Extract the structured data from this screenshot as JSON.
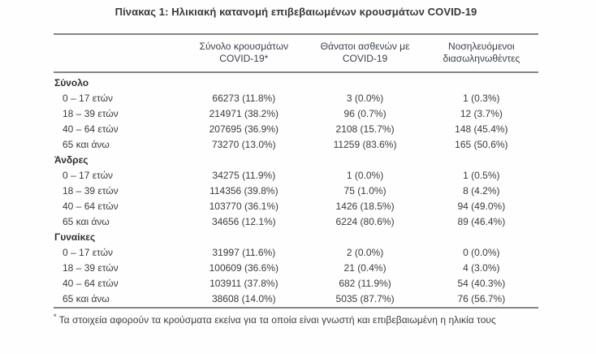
{
  "title": "Πίνακας 1: Ηλικιακή κατανομή επιβεβαιωμένων κρουσμάτων COVID-19",
  "colors": {
    "rule_gray": "#85858a",
    "text_dark": "#3a3b3d",
    "background": "#fefefe"
  },
  "table": {
    "columns": [
      {
        "line1": "",
        "line2": ""
      },
      {
        "line1": "Σύνολο κρουσμάτων",
        "line2": "COVID-19*"
      },
      {
        "line1": "Θάνατοι ασθενών με",
        "line2": "COVID-19"
      },
      {
        "line1": "Νοσηλευόμενοι",
        "line2": "διασωληνωθέντες"
      }
    ],
    "sections": [
      {
        "label": "Σύνολο",
        "rows": [
          {
            "age": "0 – 17 ετών",
            "cases": "66273 (11.8%)",
            "deaths": "3 (0.0%)",
            "intubated": "1 (0.3%)"
          },
          {
            "age": "18 – 39 ετών",
            "cases": "214971 (38.2%)",
            "deaths": "96 (0.7%)",
            "intubated": "12 (3.7%)"
          },
          {
            "age": "40 – 64 ετών",
            "cases": "207695 (36.9%)",
            "deaths": "2108 (15.7%)",
            "intubated": "148 (45.4%)"
          },
          {
            "age": "65 και άνω",
            "cases": "73270 (13.0%)",
            "deaths": "11259 (83.6%)",
            "intubated": "165 (50.6%)"
          }
        ]
      },
      {
        "label": "Άνδρες",
        "rows": [
          {
            "age": "0 – 17 ετών",
            "cases": "34275 (11.9%)",
            "deaths": "1 (0.0%)",
            "intubated": "1 (0.5%)"
          },
          {
            "age": "18 – 39 ετών",
            "cases": "114356 (39.8%)",
            "deaths": "75 (1.0%)",
            "intubated": "8 (4.2%)"
          },
          {
            "age": "40 – 64 ετών",
            "cases": "103770 (36.1%)",
            "deaths": "1426 (18.5%)",
            "intubated": "94 (49.0%)"
          },
          {
            "age": "65 και άνω",
            "cases": "34656 (12.1%)",
            "deaths": "6224 (80.6%)",
            "intubated": "89 (46.4%)"
          }
        ]
      },
      {
        "label": "Γυναίκες",
        "rows": [
          {
            "age": "0 – 17 ετών",
            "cases": "31997 (11.6%)",
            "deaths": "2 (0.0%)",
            "intubated": "0 (0.0%)"
          },
          {
            "age": "18 – 39 ετών",
            "cases": "100609 (36.6%)",
            "deaths": "21 (0.4%)",
            "intubated": "4 (3.0%)"
          },
          {
            "age": "40 – 64 ετών",
            "cases": "103911 (37.8%)",
            "deaths": "682 (11.9%)",
            "intubated": "54 (40.3%)"
          },
          {
            "age": "65 και άνω",
            "cases": "38608 (14.0%)",
            "deaths": "5035 (87.7%)",
            "intubated": "76 (56.7%)"
          }
        ]
      }
    ],
    "footnote_marker": "*",
    "footnote": "Τα στοιχεία αφορούν τα κρούσματα εκείνα για τα οποία είναι γνωστή και επιβεβαιωμένη η ηλικία τους"
  }
}
